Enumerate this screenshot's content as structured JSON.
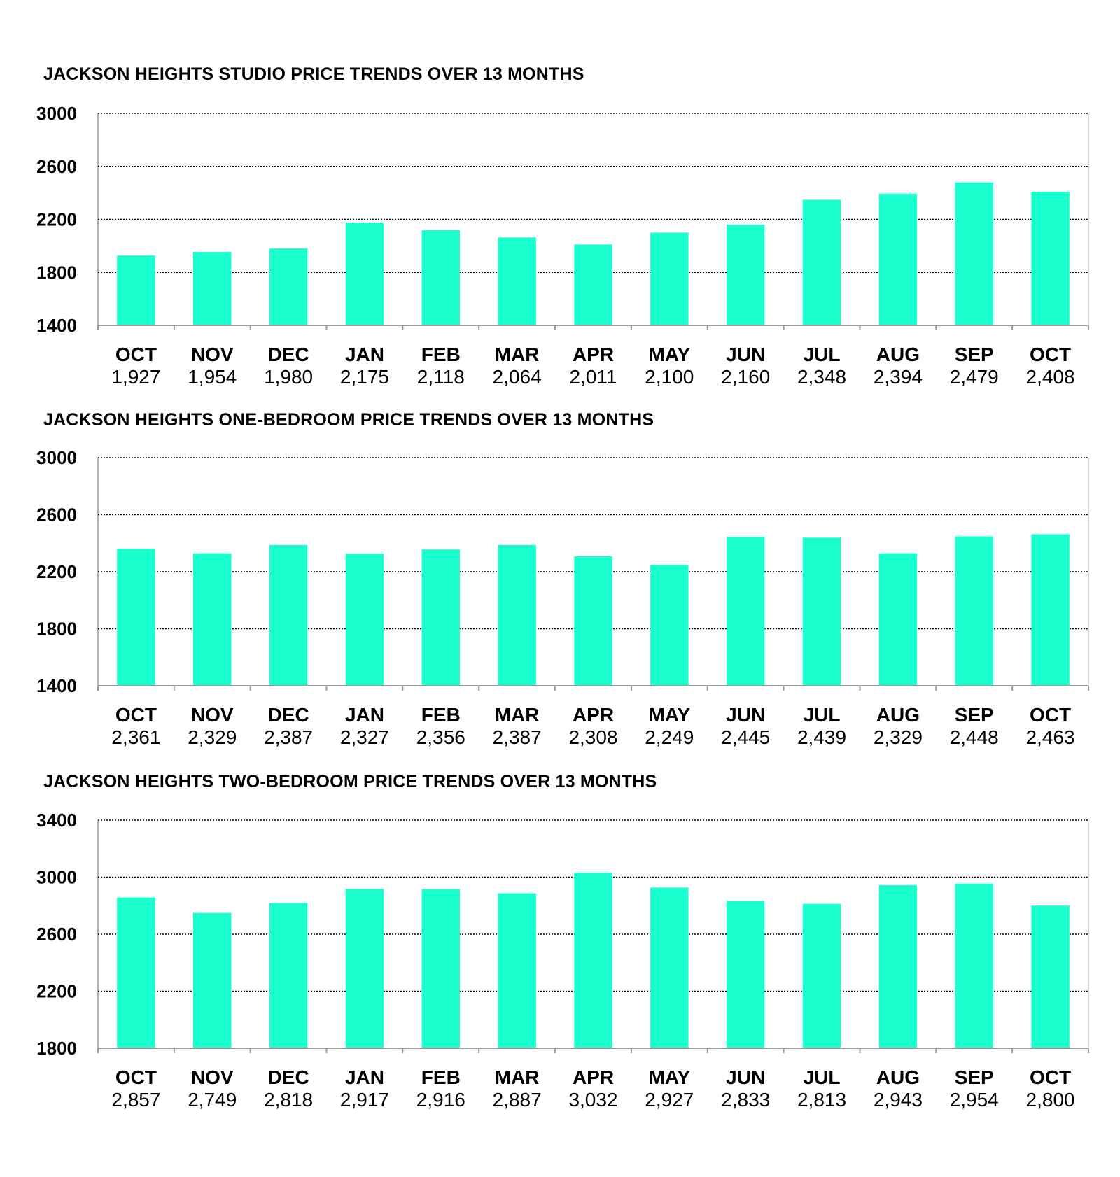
{
  "colors": {
    "bar": "#1affce",
    "axis": "#999999",
    "grid": "#000000"
  },
  "chart_data": [
    {
      "type": "bar",
      "title": "JACKSON HEIGHTS STUDIO PRICE TRENDS OVER 13 MONTHS",
      "categories": [
        "OCT",
        "NOV",
        "DEC",
        "JAN",
        "FEB",
        "MAR",
        "APR",
        "MAY",
        "JUN",
        "JUL",
        "AUG",
        "SEP",
        "OCT"
      ],
      "values": [
        1927,
        1954,
        1980,
        2175,
        2118,
        2064,
        2011,
        2100,
        2160,
        2348,
        2394,
        2479,
        2408
      ],
      "value_labels": [
        "1,927",
        "1,954",
        "1,980",
        "2,175",
        "2,118",
        "2,064",
        "2,011",
        "2,100",
        "2,160",
        "2,348",
        "2,394",
        "2,479",
        "2,408"
      ],
      "ylim": [
        1400,
        3000
      ],
      "yticks": [
        1400,
        1800,
        2200,
        2600,
        3000
      ],
      "grid": true,
      "xlabel": "",
      "ylabel": ""
    },
    {
      "type": "bar",
      "title": "JACKSON HEIGHTS ONE-BEDROOM PRICE TRENDS OVER 13 MONTHS",
      "categories": [
        "OCT",
        "NOV",
        "DEC",
        "JAN",
        "FEB",
        "MAR",
        "APR",
        "MAY",
        "JUN",
        "JUL",
        "AUG",
        "SEP",
        "OCT"
      ],
      "values": [
        2361,
        2329,
        2387,
        2327,
        2356,
        2387,
        2308,
        2249,
        2445,
        2439,
        2329,
        2448,
        2463
      ],
      "value_labels": [
        "2,361",
        "2,329",
        "2,387",
        "2,327",
        "2,356",
        "2,387",
        "2,308",
        "2,249",
        "2,445",
        "2,439",
        "2,329",
        "2,448",
        "2,463"
      ],
      "ylim": [
        1400,
        3000
      ],
      "yticks": [
        1400,
        1800,
        2200,
        2600,
        3000
      ],
      "grid": true,
      "xlabel": "",
      "ylabel": ""
    },
    {
      "type": "bar",
      "title": "JACKSON HEIGHTS TWO-BEDROOM PRICE TRENDS OVER 13 MONTHS",
      "categories": [
        "OCT",
        "NOV",
        "DEC",
        "JAN",
        "FEB",
        "MAR",
        "APR",
        "MAY",
        "JUN",
        "JUL",
        "AUG",
        "SEP",
        "OCT"
      ],
      "values": [
        2857,
        2749,
        2818,
        2917,
        2916,
        2887,
        3032,
        2927,
        2833,
        2813,
        2943,
        2954,
        2800
      ],
      "value_labels": [
        "2,857",
        "2,749",
        "2,818",
        "2,917",
        "2,916",
        "2,887",
        "3,032",
        "2,927",
        "2,833",
        "2,813",
        "2,943",
        "2,954",
        "2,800"
      ],
      "ylim": [
        1800,
        3400
      ],
      "yticks": [
        1800,
        2200,
        2600,
        3000,
        3400
      ],
      "grid": true,
      "xlabel": "",
      "ylabel": ""
    }
  ]
}
